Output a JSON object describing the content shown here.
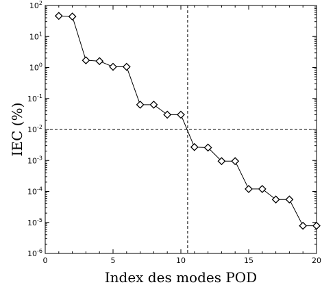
{
  "chart_data": {
    "type": "line",
    "xlabel": "Index des modes POD",
    "ylabel": "IEC (%)",
    "xlim": [
      0,
      20
    ],
    "ylim_log10": [
      -6,
      2
    ],
    "y_scale": "log",
    "grid": false,
    "legend": "none",
    "x_ticks": [
      "0",
      "5",
      "10",
      "15",
      "20"
    ],
    "y_ticks": [
      {
        "base": "10",
        "exp": "-6"
      },
      {
        "base": "10",
        "exp": "-5"
      },
      {
        "base": "10",
        "exp": "-4"
      },
      {
        "base": "10",
        "exp": "-3"
      },
      {
        "base": "10",
        "exp": "-2"
      },
      {
        "base": "10",
        "exp": "-1"
      },
      {
        "base": "10",
        "exp": "0"
      },
      {
        "base": "10",
        "exp": "1"
      },
      {
        "base": "10",
        "exp": "2"
      }
    ],
    "series": [
      {
        "marker": "diamond",
        "color": "#000000",
        "x": [
          1,
          2,
          3,
          4,
          5,
          6,
          7,
          8,
          9,
          10,
          11,
          12,
          13,
          14,
          15,
          16,
          17,
          18,
          19,
          20
        ],
        "y": [
          46,
          44,
          1.7,
          1.6,
          1.05,
          1.05,
          0.063,
          0.063,
          0.03,
          0.03,
          0.0027,
          0.0026,
          0.00095,
          0.00095,
          0.00012,
          0.00012,
          5.5e-05,
          5.5e-05,
          7.8e-06,
          7.8e-06
        ]
      }
    ],
    "reference_lines": [
      {
        "orientation": "vertical",
        "x": 10.5,
        "style": "dashed"
      },
      {
        "orientation": "horizontal",
        "y": 0.01,
        "style": "dashed"
      }
    ]
  }
}
